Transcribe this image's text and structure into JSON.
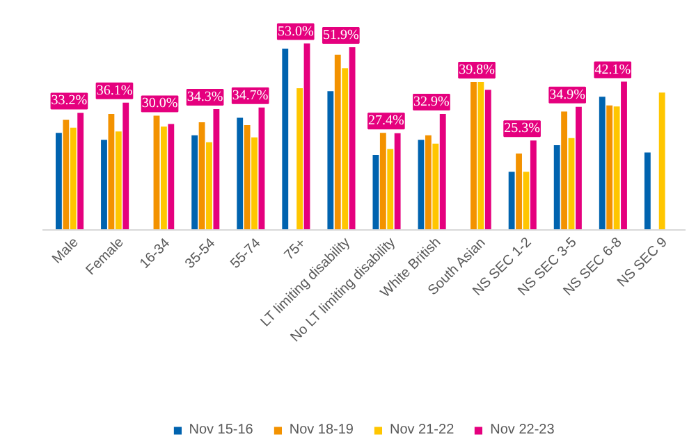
{
  "chart_data": {
    "type": "bar",
    "categories": [
      "Male",
      "Female",
      "16-34",
      "35-54",
      "55-74",
      "75+",
      "LT limiting disability",
      "No LT limiting disability",
      "White British",
      "South Asian",
      "NS SEC 1-2",
      "NS SEC 3-5",
      "NS SEC 6-8",
      "NS SEC 9"
    ],
    "series": [
      {
        "name": "Nov 15-16",
        "color": "#0063af",
        "values": [
          27.5,
          25.5,
          null,
          26.8,
          31.8,
          51.5,
          39.4,
          21.2,
          25.5,
          null,
          16.4,
          24.0,
          37.8,
          21.9
        ]
      },
      {
        "name": "Nov 18-19",
        "color": "#f39200",
        "values": [
          31.2,
          32.9,
          32.4,
          30.5,
          29.7,
          null,
          49.8,
          27.5,
          26.8,
          42.0,
          21.6,
          33.6,
          35.3,
          null
        ]
      },
      {
        "name": "Nov 21-22",
        "color": "#ffc600",
        "values": [
          29.0,
          27.9,
          29.3,
          24.8,
          26.2,
          40.2,
          45.9,
          22.9,
          24.4,
          42.0,
          16.4,
          26.0,
          35.0,
          39.0
        ]
      },
      {
        "name": "Nov 22-23",
        "color": "#e5007e",
        "values": [
          33.2,
          36.1,
          30.0,
          34.3,
          34.7,
          53.0,
          51.9,
          27.4,
          32.9,
          39.8,
          25.3,
          34.9,
          42.1,
          null
        ],
        "value_labels": [
          "33.2%",
          "36.1%",
          "30.0%",
          "34.3%",
          "34.7%",
          "53.0%",
          "51.9%",
          "27.4%",
          "32.9%",
          "39.8%",
          "25.3%",
          "34.9%",
          "42.1%",
          null
        ]
      }
    ],
    "legend": "bottom"
  }
}
